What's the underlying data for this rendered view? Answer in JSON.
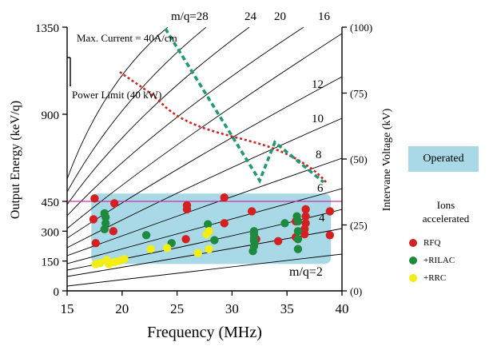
{
  "chart_data": {
    "type": "scatter",
    "xlabel": "Frequency (MHz)",
    "ylabel_left": "Output Energy (keV/q)",
    "ylabel_right": "Intervane Voltage (kV)",
    "xlim": [
      15,
      40
    ],
    "ylim": [
      0,
      1350
    ],
    "x_ticks": [
      "15",
      "20",
      "25",
      "30",
      "35",
      "40"
    ],
    "x_tick_values": [
      15,
      20,
      25,
      30,
      35,
      40
    ],
    "y_ticks": [
      {
        "label": "0",
        "value": 0
      },
      {
        "label": "150",
        "value": 150
      },
      {
        "label": "300",
        "value": 300
      },
      {
        "label": "450",
        "value": 450
      },
      {
        "label": "900",
        "value": 900
      },
      {
        "label": "1350",
        "value": 1350
      }
    ],
    "y_axis_break": "between 450 and 900 (compressed scale above ~470)",
    "right_ticks": [
      {
        "label": "(0)",
        "value": 0
      },
      {
        "label": "(25)",
        "value": 25
      },
      {
        "label": "(50)",
        "value": 50
      },
      {
        "label": "(75)",
        "value": 75
      },
      {
        "label": "(100)",
        "value": 100
      }
    ],
    "highlight_level": {
      "y": 450,
      "color": "#cc33aa"
    },
    "operated_region": {
      "x": [
        17.2,
        39.0
      ],
      "y": [
        135,
        490
      ],
      "color": "#a9d9e6"
    },
    "mq_curve_labels": [
      "m/q=28",
      "24",
      "20",
      "16",
      "12",
      "10",
      "8",
      "6",
      "4",
      "m/q=2"
    ],
    "annotations": {
      "max_current": "Max. Current  = 40A/cm",
      "power_limit": "Power Limit (40 kW)"
    },
    "legend": {
      "operated": "Operated",
      "ions_title_line1": "Ions",
      "ions_title_line2": "accelerated"
    },
    "series": [
      {
        "name": "RFQ",
        "color": "#d42020",
        "points": [
          [
            17.5,
            465
          ],
          [
            17.4,
            360
          ],
          [
            17.6,
            240
          ],
          [
            19.3,
            440
          ],
          [
            19.2,
            300
          ],
          [
            25.9,
            430
          ],
          [
            25.9,
            410
          ],
          [
            25.8,
            260
          ],
          [
            29.3,
            470
          ],
          [
            29.3,
            340
          ],
          [
            31.8,
            400
          ],
          [
            32.2,
            260
          ],
          [
            34.2,
            250
          ],
          [
            35.8,
            350
          ],
          [
            35.8,
            270
          ],
          [
            36.7,
            410
          ],
          [
            36.7,
            375
          ],
          [
            36.7,
            340
          ],
          [
            36.6,
            310
          ],
          [
            36.6,
            285
          ],
          [
            38.9,
            400
          ],
          [
            38.9,
            280
          ]
        ]
      },
      {
        "name": "+RILAC",
        "color": "#1e8a3e",
        "points": [
          [
            18.4,
            390
          ],
          [
            18.5,
            370
          ],
          [
            18.5,
            340
          ],
          [
            18.4,
            310
          ],
          [
            22.2,
            280
          ],
          [
            24.5,
            240
          ],
          [
            27.8,
            335
          ],
          [
            27.9,
            300
          ],
          [
            28.4,
            255
          ],
          [
            32.0,
            300
          ],
          [
            32.0,
            285
          ],
          [
            32.0,
            265
          ],
          [
            32.0,
            250
          ],
          [
            32.0,
            225
          ],
          [
            31.9,
            200
          ],
          [
            34.8,
            340
          ],
          [
            35.9,
            375
          ],
          [
            36.0,
            350
          ],
          [
            36.0,
            300
          ],
          [
            36.0,
            260
          ],
          [
            36.0,
            210
          ]
        ]
      },
      {
        "name": "+RRC",
        "color": "#f2ee14",
        "points": [
          [
            17.6,
            135
          ],
          [
            18.0,
            140
          ],
          [
            18.6,
            155
          ],
          [
            18.8,
            135
          ],
          [
            19.3,
            145
          ],
          [
            19.7,
            150
          ],
          [
            20.2,
            160
          ],
          [
            22.6,
            210
          ],
          [
            24.1,
            215
          ],
          [
            26.9,
            190
          ],
          [
            27.7,
            285
          ],
          [
            27.9,
            300
          ],
          [
            27.9,
            210
          ]
        ]
      }
    ]
  }
}
